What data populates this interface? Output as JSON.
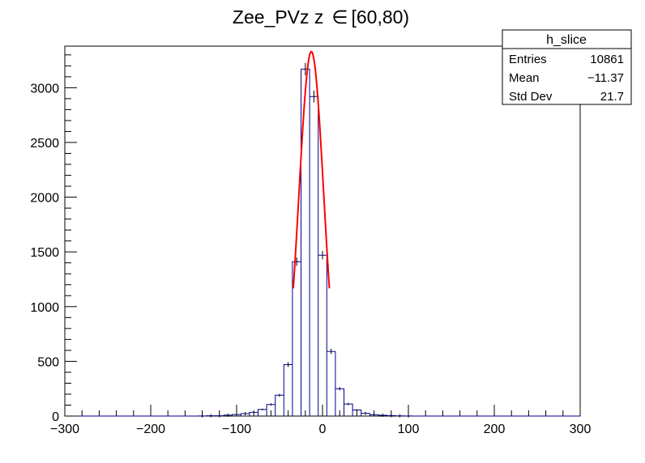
{
  "title": "Zee_PVz z",
  "title_range": "[60,80)",
  "title_symbol": "∈",
  "stats": {
    "name": "h_slice",
    "rows": [
      {
        "label": "Entries",
        "value": "10861"
      },
      {
        "label": "Mean",
        "value": "−11.37"
      },
      {
        "label": "Std Dev",
        "value": "21.7"
      }
    ]
  },
  "colors": {
    "histogram": "#00008b",
    "fit": "#ff0000",
    "axis": "#000000"
  },
  "chart_data": {
    "type": "histogram",
    "xlim": [
      -300,
      300
    ],
    "ylim": [
      0,
      3380
    ],
    "x_ticks": [
      -300,
      -200,
      -100,
      0,
      100,
      200,
      300
    ],
    "x_tick_labels": [
      "−300",
      "−200",
      "−100",
      "0",
      "100",
      "200",
      "300"
    ],
    "y_ticks": [
      0,
      500,
      1000,
      1500,
      2000,
      2500,
      3000
    ],
    "y_tick_labels": [
      "0",
      "500",
      "1000",
      "1500",
      "2000",
      "2500",
      "3000"
    ],
    "bin_width": 10,
    "bins": [
      {
        "x": -140,
        "y": 1
      },
      {
        "x": -130,
        "y": 3
      },
      {
        "x": -120,
        "y": 3
      },
      {
        "x": -110,
        "y": 8
      },
      {
        "x": -100,
        "y": 14
      },
      {
        "x": -90,
        "y": 22
      },
      {
        "x": -80,
        "y": 34
      },
      {
        "x": -70,
        "y": 60
      },
      {
        "x": -60,
        "y": 105
      },
      {
        "x": -50,
        "y": 190
      },
      {
        "x": -40,
        "y": 470
      },
      {
        "x": -30,
        "y": 1410
      },
      {
        "x": -20,
        "y": 3170
      },
      {
        "x": -10,
        "y": 2920
      },
      {
        "x": 0,
        "y": 1470
      },
      {
        "x": 10,
        "y": 590
      },
      {
        "x": 20,
        "y": 250
      },
      {
        "x": 30,
        "y": 110
      },
      {
        "x": 40,
        "y": 55
      },
      {
        "x": 50,
        "y": 25
      },
      {
        "x": 60,
        "y": 12
      },
      {
        "x": 70,
        "y": 7
      },
      {
        "x": 80,
        "y": 4
      },
      {
        "x": 90,
        "y": 2
      },
      {
        "x": 100,
        "y": 1
      }
    ],
    "fit": {
      "function": "gaus",
      "constant": 3330,
      "mean": -13,
      "sigma": 14.5,
      "range": [
        -34,
        8
      ]
    }
  }
}
